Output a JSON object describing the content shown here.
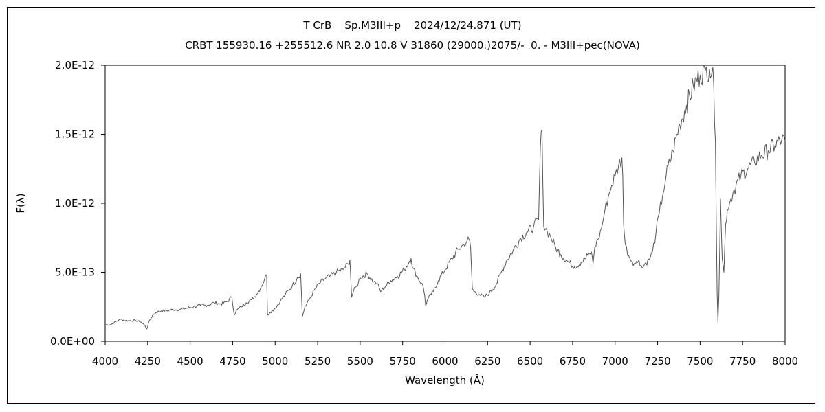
{
  "chart_data": {
    "type": "line",
    "title": "T CrB    Sp.M3III+p    2024/12/24.871 (UT)",
    "subtitle": "CRBT 155930.16 +255512.6 NR 2.0 10.8 V 31860 (29000.)2075/-  0. - M3III+pec(NOVA)",
    "xlabel": "Wavelength (Å)",
    "ylabel": "F(λ)",
    "xlim": [
      4000,
      8000
    ],
    "ylim": [
      0,
      2e-12
    ],
    "grid": false,
    "x_ticks": [
      4000,
      4250,
      4500,
      4750,
      5000,
      5250,
      5500,
      5750,
      6000,
      6250,
      6500,
      6750,
      7000,
      7250,
      7500,
      7750,
      8000
    ],
    "x_tick_labels": [
      "4000",
      "4250",
      "4500",
      "4750",
      "5000",
      "5250",
      "5500",
      "5750",
      "6000",
      "6250",
      "6500",
      "6750",
      "7000",
      "7250",
      "7500",
      "7750",
      "8000"
    ],
    "y_ticks": [
      0,
      5e-13,
      1e-12,
      1.5e-12,
      2e-12
    ],
    "y_tick_labels": [
      "0.0E+00",
      "5.0E-13",
      "1.0E-12",
      "1.5E-12",
      "2.0E-12"
    ],
    "series": [
      {
        "line_color": "#555555",
        "x": [
          4000,
          4030,
          4060,
          4090,
          4120,
          4150,
          4180,
          4210,
          4230,
          4245,
          4260,
          4280,
          4300,
          4330,
          4360,
          4400,
          4440,
          4480,
          4520,
          4560,
          4600,
          4640,
          4680,
          4720,
          4745,
          4760,
          4770,
          4800,
          4830,
          4860,
          4890,
          4920,
          4940,
          4950,
          4955,
          4970,
          5000,
          5030,
          5060,
          5100,
          5130,
          5150,
          5160,
          5165,
          5175,
          5200,
          5230,
          5260,
          5290,
          5320,
          5360,
          5400,
          5430,
          5440,
          5450,
          5460,
          5480,
          5500,
          5540,
          5580,
          5600,
          5620,
          5650,
          5680,
          5720,
          5760,
          5790,
          5800,
          5810,
          5840,
          5870,
          5880,
          5885,
          5900,
          5930,
          5960,
          6000,
          6040,
          6080,
          6110,
          6130,
          6140,
          6150,
          6160,
          6170,
          6200,
          6230,
          6260,
          6300,
          6330,
          6360,
          6400,
          6440,
          6480,
          6520,
          6550,
          6560,
          6570,
          6580,
          6600,
          6620,
          6650,
          6680,
          6720,
          6760,
          6800,
          6840,
          6860,
          6870,
          6880,
          6900,
          6920,
          6940,
          6960,
          6980,
          7000,
          7020,
          7040,
          7045,
          7050,
          7060,
          7080,
          7100,
          7120,
          7140,
          7160,
          7180,
          7200,
          7220,
          7240,
          7260,
          7280,
          7300,
          7340,
          7380,
          7420,
          7460,
          7500,
          7530,
          7555,
          7570,
          7580,
          7590,
          7595,
          7600,
          7605,
          7610,
          7620,
          7630,
          7640,
          7650,
          7660,
          7680,
          7700,
          7740,
          7780,
          7820,
          7860,
          7900,
          7940,
          7980,
          8000
        ],
        "y": [
          1.2e-13,
          1.2e-13,
          1.4e-13,
          1.6e-13,
          1.5e-13,
          1.5e-13,
          1.5e-13,
          1.4e-13,
          1.2e-13,
          9e-14,
          1.5e-13,
          1.9e-13,
          2.1e-13,
          2.2e-13,
          2.2e-13,
          2.3e-13,
          2.3e-13,
          2.4e-13,
          2.5e-13,
          2.6e-13,
          2.6e-13,
          2.8e-13,
          2.7e-13,
          2.9e-13,
          3.2e-13,
          1.9e-13,
          2.2e-13,
          2.5e-13,
          2.8e-13,
          3e-13,
          3.4e-13,
          4e-13,
          4.6e-13,
          4.8e-13,
          1.9e-13,
          2.1e-13,
          2.4e-13,
          2.9e-13,
          3.4e-13,
          4e-13,
          4.6e-13,
          4.9e-13,
          1.8e-13,
          2e-13,
          2.5e-13,
          3e-13,
          3.7e-13,
          4.2e-13,
          4.5e-13,
          4.7e-13,
          5e-13,
          5.2e-13,
          5.6e-13,
          5.9e-13,
          3.2e-13,
          3.6e-13,
          4e-13,
          4.6e-13,
          4.9e-13,
          4.3e-13,
          4.2e-13,
          3.6e-13,
          4e-13,
          4.4e-13,
          4.7e-13,
          5.2e-13,
          5.8e-13,
          6e-13,
          5.3e-13,
          4.6e-13,
          4e-13,
          3.3e-13,
          2.6e-13,
          3.1e-13,
          3.6e-13,
          4.4e-13,
          5.2e-13,
          6e-13,
          6.7e-13,
          7e-13,
          7.3e-13,
          7.4e-13,
          6.8e-13,
          3.8e-13,
          3.6e-13,
          3.4e-13,
          3.2e-13,
          3.5e-13,
          4.1e-13,
          5e-13,
          5.8e-13,
          6.6e-13,
          7.4e-13,
          7.9e-13,
          8.3e-13,
          8.8e-13,
          1.4e-12,
          1.53e-12,
          8.3e-13,
          8e-13,
          7.6e-13,
          6.8e-13,
          6.3e-13,
          5.8e-13,
          5.4e-13,
          5.7e-13,
          6.2e-13,
          6.5e-13,
          5.6e-13,
          6.8e-13,
          7.4e-13,
          8.2e-13,
          9.5e-13,
          1.05e-12,
          1.13e-12,
          1.2e-12,
          1.27e-12,
          1.33e-12,
          1.2e-12,
          8.5e-13,
          7e-13,
          6.2e-13,
          5.8e-13,
          5.6e-13,
          5.9e-13,
          5.3e-13,
          5.7e-13,
          5.9e-13,
          6.5e-13,
          7.8e-13,
          9.3e-13,
          1.06e-12,
          1.2e-12,
          1.38e-12,
          1.57e-12,
          1.71e-12,
          1.85e-12,
          1.93e-12,
          1.96e-12,
          1.97e-12,
          1.95e-12,
          1.85e-12,
          1.45e-12,
          8.5e-13,
          3.5e-13,
          1.4e-13,
          3.2e-13,
          1.03e-12,
          6e-13,
          5e-13,
          8.5e-13,
          9.5e-13,
          1.03e-12,
          1.1e-12,
          1.2e-12,
          1.25e-12,
          1.3e-12,
          1.35e-12,
          1.38e-12,
          1.42e-12,
          1.46e-12,
          1.45e-12
        ]
      }
    ]
  }
}
